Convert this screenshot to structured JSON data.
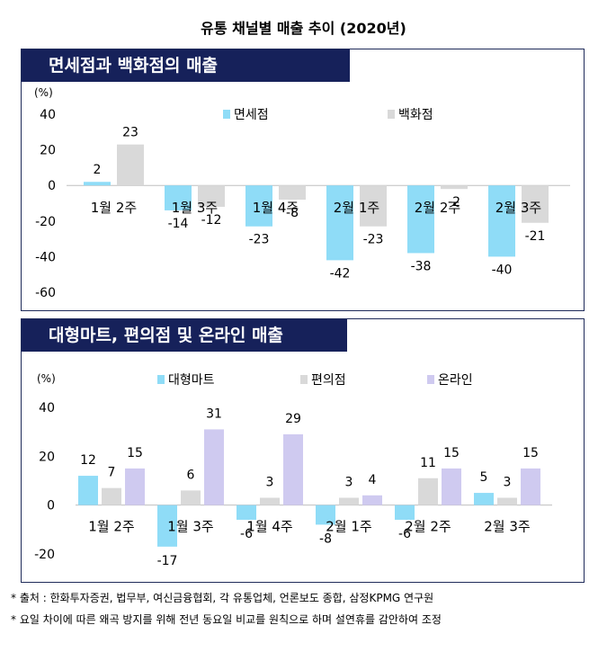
{
  "title": "유통 채널별 매출 추이 (2020년)",
  "colors": {
    "s1": "#8fdcf7",
    "s2": "#d9d9d9",
    "s3": "#cfcaf0",
    "header": "#16215a"
  },
  "chart_data": [
    {
      "type": "bar",
      "title": "면세점과 백화점의 매출",
      "ylabel": "(%)",
      "ylim": [
        -60,
        40
      ],
      "yticks": [
        40,
        20,
        0,
        -20,
        -40,
        -60
      ],
      "categories": [
        "1월 2주",
        "1월 3주",
        "1월 4주",
        "2월 1주",
        "2월 2주",
        "2월 3주"
      ],
      "series": [
        {
          "name": "면세점",
          "values": [
            2,
            -14,
            -23,
            -42,
            -38,
            -40
          ]
        },
        {
          "name": "백화점",
          "values": [
            23,
            -12,
            -8,
            -23,
            -2,
            -21
          ]
        }
      ]
    },
    {
      "type": "bar",
      "title": "대형마트, 편의점 및 온라인 매출",
      "ylabel": "(%)",
      "ylim": [
        -20,
        40
      ],
      "yticks": [
        40,
        20,
        0,
        -20
      ],
      "categories": [
        "1월 2주",
        "1월 3주",
        "1월 4주",
        "2월 1주",
        "2월 2주",
        "2월 3주"
      ],
      "series": [
        {
          "name": "대형마트",
          "values": [
            12,
            -17,
            -6,
            -8,
            -6,
            5
          ]
        },
        {
          "name": "편의점",
          "values": [
            7,
            6,
            3,
            3,
            11,
            3
          ]
        },
        {
          "name": "온라인",
          "values": [
            15,
            31,
            29,
            4,
            15,
            15
          ]
        }
      ]
    }
  ],
  "footnotes": [
    "* 출처 : 한화투자증권, 법무부, 여신금융협회, 각 유통업체, 언론보도 종합, 삼정KPMG 연구원",
    "* 요일 차이에 따른 왜곡 방지를 위해 전년 동요일 비교를 원칙으로 하며 설연휴를 감안하여 조정"
  ]
}
